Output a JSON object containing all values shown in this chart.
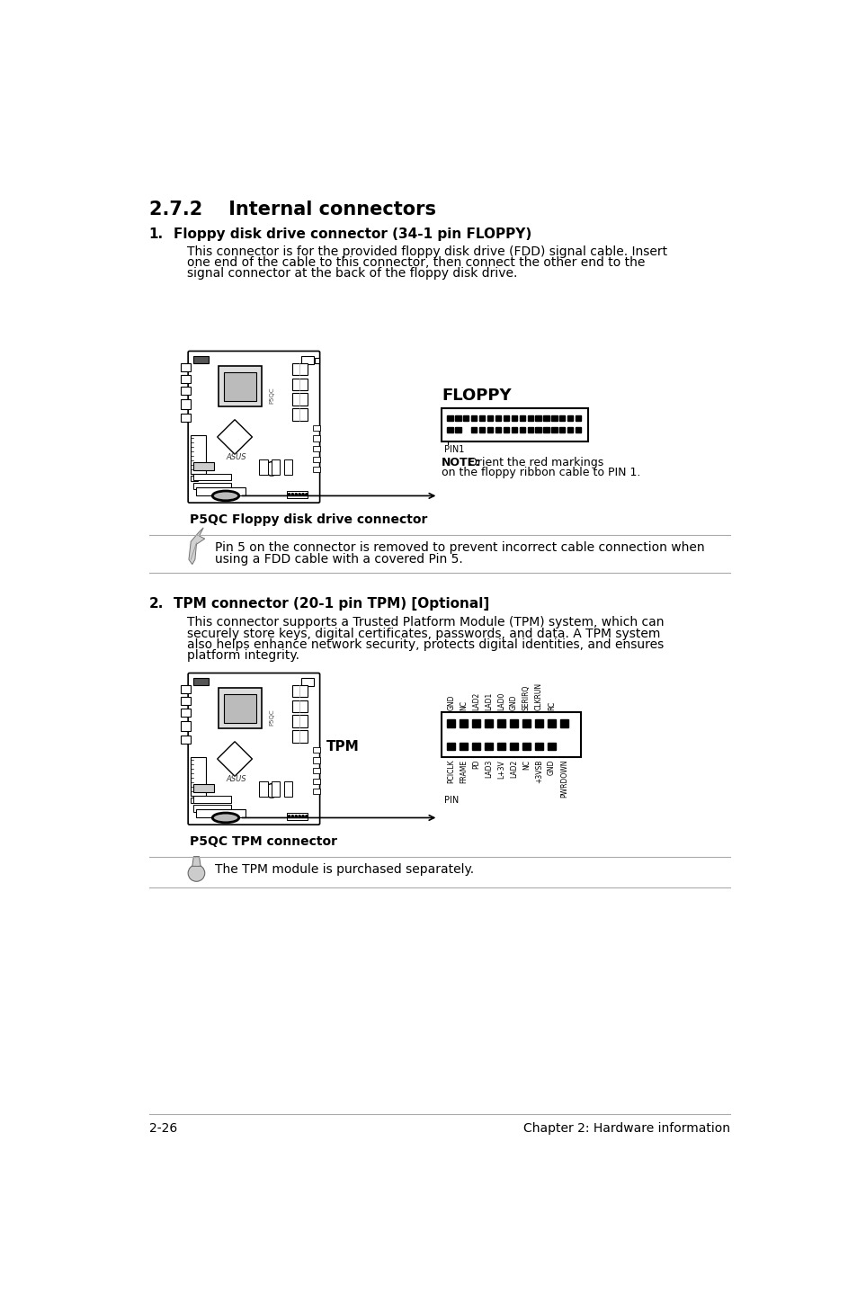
{
  "title": "2.7.2    Internal connectors",
  "section1_num": "1.",
  "section1_title": "Floppy disk drive connector (34-1 pin FLOPPY)",
  "section1_body_lines": [
    "This connector is for the provided floppy disk drive (FDD) signal cable. Insert",
    "one end of the cable to this connector, then connect the other end to the",
    "signal connector at the back of the floppy disk drive."
  ],
  "section1_caption": "P5QC Floppy disk drive connector",
  "section1_note_line1": "Pin 5 on the connector is removed to prevent incorrect cable connection when",
  "section1_note_line2": "using a FDD cable with a covered Pin 5.",
  "floppy_label": "FLOPPY",
  "floppy_pin_label": "PIN1",
  "floppy_note_bold": "NOTE:",
  "floppy_note_line1": "Orient the red markings",
  "floppy_note_line2": "on the floppy ribbon cable to PIN 1.",
  "section2_num": "2.",
  "section2_title": "TPM connector (20-1 pin TPM) [Optional]",
  "section2_body_lines": [
    "This connector supports a Trusted Platform Module (TPM) system, which can",
    "securely store keys, digital certificates, passwords, and data. A TPM system",
    "also helps enhance network security, protects digital identities, and ensures",
    "platform integrity."
  ],
  "section2_caption": "P5QC TPM connector",
  "section2_note": "The TPM module is purchased separately.",
  "tpm_label": "TPM",
  "tpm_pin_label": "PIN",
  "tpm_top_pins": [
    "GND",
    "NC",
    "LAD2",
    "LAD1",
    "LAD0",
    "GND",
    "SERIRQ",
    "CLKRUN",
    "RC"
  ],
  "tpm_bot_pins": [
    "PCICLK",
    "FRAME",
    "PD",
    "LAD3",
    "L+3V",
    "LAD2",
    "NC",
    "+3VSB",
    "GND",
    "PWRDOWN"
  ],
  "footer_left": "2-26",
  "footer_right": "Chapter 2: Hardware information",
  "bg_color": "#ffffff",
  "text_color": "#000000",
  "line_color": "#aaaaaa"
}
